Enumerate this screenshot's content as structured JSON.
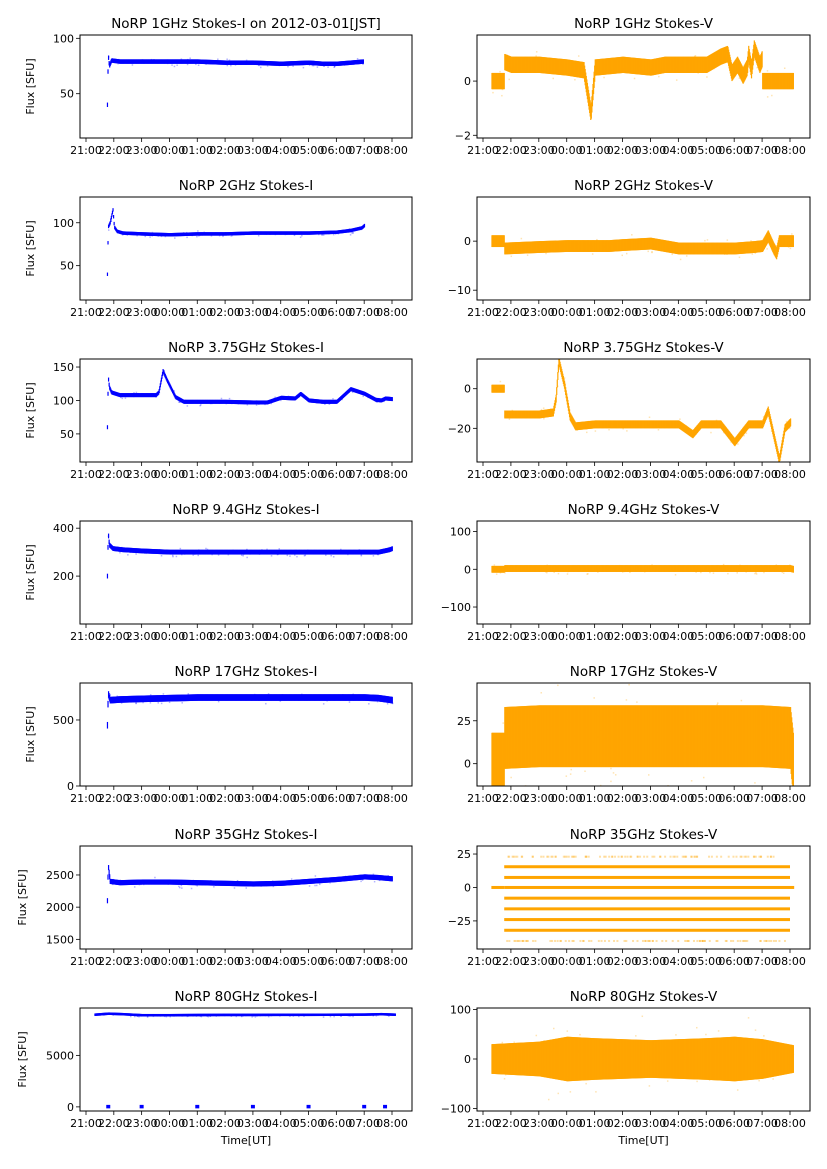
{
  "figure": {
    "xlabel_bottom": "Time[UT]",
    "ylabel_left": "Flux [SFU]",
    "x_ticks": [
      "21:00",
      "22:00",
      "23:00",
      "00:00",
      "01:00",
      "02:00",
      "03:00",
      "04:00",
      "05:00",
      "06:00",
      "07:00",
      "08:00"
    ],
    "colors": {
      "stokes_i": "#0000ff",
      "stokes_v": "#ffa500"
    }
  },
  "chart_data": [
    {
      "type": "scatter",
      "title": "NoRP 1GHz Stokes-I on 2012-03-01[JST]",
      "ylabel": "Flux [SFU]",
      "xlabel": "",
      "x_unit": "hours since 21:00 UT",
      "xlim": [
        -0.2,
        11.2
      ],
      "ylim": [
        10,
        103
      ],
      "yticks": [
        50,
        100
      ],
      "series": [
        {
          "name": "Stokes-I",
          "color": "#0000ff",
          "x": [
            0.75,
            0.78,
            0.82,
            0.9,
            1.2,
            2,
            3,
            4,
            5,
            6,
            7,
            8,
            8.5,
            9,
            9.5,
            9.95
          ],
          "y": [
            40,
            85,
            75,
            80,
            79,
            79,
            79,
            79,
            78,
            78,
            77,
            78,
            77,
            77,
            78,
            79
          ],
          "spread": 2
        }
      ]
    },
    {
      "type": "scatter",
      "title": "NoRP 1GHz Stokes-V",
      "ylabel": "",
      "xlabel": "",
      "x_unit": "hours since 21:00 UT",
      "xlim": [
        -0.2,
        11.2
      ],
      "ylim": [
        -2.1,
        1.7
      ],
      "yticks": [
        -2,
        0
      ],
      "series": [
        {
          "name": "Stokes-V",
          "color": "#ffa500",
          "x": [
            0.3,
            0.74,
            0.76,
            1,
            2,
            3,
            3.6,
            3.85,
            4,
            5,
            6,
            6.5,
            6.9,
            7.2,
            7.5,
            8,
            8.5,
            8.75,
            8.9,
            9.1,
            9.3,
            9.45,
            9.5,
            9.6,
            9.7,
            9.9,
            9.98,
            10,
            10.5,
            11.1
          ],
          "y": [
            0,
            0,
            0.7,
            0.6,
            0.6,
            0.5,
            0.4,
            -1.2,
            0.5,
            0.6,
            0.5,
            0.6,
            0.6,
            0.6,
            0.6,
            0.6,
            0.9,
            1.0,
            0.3,
            0.6,
            0.2,
            0.5,
            1.0,
            0.4,
            1.2,
            0.6,
            0.8,
            0,
            0,
            0
          ],
          "spread": 0.3
        }
      ]
    },
    {
      "type": "scatter",
      "title": "NoRP 2GHz Stokes-I",
      "ylabel": "Flux [SFU]",
      "xlabel": "",
      "x_unit": "hours since 21:00 UT",
      "xlim": [
        -0.2,
        11.2
      ],
      "ylim": [
        10,
        130
      ],
      "yticks": [
        50,
        100
      ],
      "series": [
        {
          "name": "Stokes-I",
          "color": "#0000ff",
          "x": [
            0.75,
            0.78,
            0.85,
            0.95,
            1.0,
            1.1,
            1.3,
            2,
            3,
            4,
            5,
            6,
            7,
            8,
            9,
            9.5,
            9.9,
            10.0
          ],
          "y": [
            40,
            95,
            100,
            115,
            95,
            90,
            88,
            87,
            86,
            87,
            87,
            88,
            88,
            88,
            89,
            91,
            94,
            97
          ],
          "spread": 2
        }
      ]
    },
    {
      "type": "scatter",
      "title": "NoRP 2GHz Stokes-V",
      "ylabel": "",
      "xlabel": "",
      "x_unit": "hours since 21:00 UT",
      "xlim": [
        -0.2,
        11.2
      ],
      "ylim": [
        -12,
        9
      ],
      "yticks": [
        -10,
        0
      ],
      "series": [
        {
          "name": "Stokes-V",
          "color": "#ffa500",
          "x": [
            0.3,
            0.74,
            0.76,
            2,
            3,
            4,
            4.5,
            5,
            6,
            7,
            8,
            9,
            9.7,
            10.0,
            10.2,
            10.4,
            10.5,
            10.6,
            10.8,
            11.1
          ],
          "y": [
            0,
            0,
            -1.5,
            -1.2,
            -1,
            -1,
            -1,
            -0.8,
            -0.5,
            -1.5,
            -1.5,
            -1.5,
            -1.2,
            -1,
            1,
            -1.5,
            -2.5,
            0,
            0,
            0
          ],
          "spread": 1.2
        }
      ]
    },
    {
      "type": "scatter",
      "title": "NoRP 3.75GHz Stokes-I",
      "ylabel": "Flux [SFU]",
      "xlabel": "",
      "x_unit": "hours since 21:00 UT",
      "xlim": [
        -0.2,
        11.2
      ],
      "ylim": [
        8,
        162
      ],
      "yticks": [
        50,
        100,
        150
      ],
      "series": [
        {
          "name": "Stokes-I",
          "color": "#0000ff",
          "x": [
            0.75,
            0.78,
            0.82,
            0.9,
            1.2,
            2,
            2.5,
            2.6,
            2.75,
            2.9,
            3.2,
            3.5,
            4,
            5,
            6,
            6.5,
            7,
            7.5,
            7.7,
            8,
            8.5,
            9,
            9.5,
            10,
            10.4,
            10.6,
            10.75,
            11
          ],
          "y": [
            60,
            135,
            120,
            112,
            108,
            108,
            108,
            112,
            144,
            130,
            105,
            98,
            98,
            98,
            97,
            97,
            104,
            103,
            110,
            100,
            98,
            98,
            117,
            110,
            101,
            100,
            103,
            102
          ],
          "spread": 3
        }
      ]
    },
    {
      "type": "scatter",
      "title": "NoRP 3.75GHz Stokes-V",
      "ylabel": "",
      "xlabel": "",
      "x_unit": "hours since 21:00 UT",
      "xlim": [
        -0.2,
        11.2
      ],
      "ylim": [
        -37,
        15
      ],
      "yticks": [
        -20,
        0
      ],
      "series": [
        {
          "name": "Stokes-V",
          "color": "#ffa500",
          "x": [
            0.3,
            0.74,
            0.76,
            2,
            2.5,
            2.6,
            2.7,
            2.9,
            3.1,
            3.3,
            4,
            5,
            6,
            7,
            7.5,
            7.8,
            8,
            8.5,
            9,
            9.5,
            10,
            10.2,
            10.6,
            10.8,
            11.0
          ],
          "y": [
            0,
            0,
            -13,
            -13,
            -12,
            -5,
            14,
            2,
            -14,
            -19,
            -18,
            -18,
            -18,
            -18,
            -23,
            -18,
            -18,
            -18,
            -27,
            -18,
            -18,
            -11,
            -36,
            -20,
            -17
          ],
          "spread": 2
        }
      ]
    },
    {
      "type": "scatter",
      "title": "NoRP 9.4GHz Stokes-I",
      "ylabel": "Flux [SFU]",
      "xlabel": "",
      "x_unit": "hours since 21:00 UT",
      "xlim": [
        -0.2,
        11.2
      ],
      "ylim": [
        0,
        430
      ],
      "yticks": [
        200,
        400
      ],
      "series": [
        {
          "name": "Stokes-I",
          "color": "#0000ff",
          "x": [
            0.75,
            0.78,
            0.82,
            0.95,
            1.3,
            2,
            3,
            4,
            5,
            6,
            7,
            8,
            9,
            10,
            10.5,
            10.9,
            11
          ],
          "y": [
            200,
            380,
            330,
            315,
            310,
            305,
            300,
            300,
            300,
            300,
            300,
            300,
            300,
            300,
            300,
            310,
            315
          ],
          "spread": 10
        }
      ]
    },
    {
      "type": "scatter",
      "title": "NoRP 9.4GHz Stokes-V",
      "ylabel": "",
      "xlabel": "",
      "x_unit": "hours since 21:00 UT",
      "xlim": [
        -0.2,
        11.2
      ],
      "ylim": [
        -145,
        128
      ],
      "yticks": [
        -100,
        0,
        100
      ],
      "series": [
        {
          "name": "Stokes-V",
          "color": "#ffa500",
          "x": [
            0.3,
            0.74,
            0.76,
            2,
            4,
            6,
            8,
            10,
            11,
            11.1
          ],
          "y": [
            0,
            0,
            2,
            2,
            2,
            2,
            2,
            2,
            2,
            0
          ],
          "spread": 9
        }
      ]
    },
    {
      "type": "scatter",
      "title": "NoRP 17GHz Stokes-I",
      "ylabel": "Flux [SFU]",
      "xlabel": "",
      "x_unit": "hours since 21:00 UT",
      "xlim": [
        -0.2,
        11.2
      ],
      "ylim": [
        0,
        780
      ],
      "yticks": [
        0,
        500
      ],
      "series": [
        {
          "name": "Stokes-I",
          "color": "#0000ff",
          "x": [
            0.75,
            0.78,
            0.85,
            1.2,
            2,
            3,
            4,
            5,
            6,
            7,
            8,
            9,
            10,
            10.5,
            11
          ],
          "y": [
            460,
            700,
            650,
            655,
            660,
            665,
            670,
            670,
            670,
            670,
            670,
            670,
            670,
            665,
            650
          ],
          "spread": 25
        }
      ]
    },
    {
      "type": "scatter",
      "title": "NoRP 17GHz Stokes-V",
      "ylabel": "",
      "xlabel": "",
      "x_unit": "hours since 21:00 UT",
      "xlim": [
        -0.2,
        11.2
      ],
      "ylim": [
        -13,
        47
      ],
      "yticks": [
        0,
        25
      ],
      "series": [
        {
          "name": "Stokes-V",
          "color": "#ffa500",
          "x": [
            0.3,
            0.74,
            0.76,
            2,
            4,
            6,
            8,
            10,
            11,
            11.1
          ],
          "y": [
            0,
            0,
            15,
            16,
            16,
            16,
            16,
            16,
            15,
            0
          ],
          "spread": 18
        }
      ]
    },
    {
      "type": "scatter",
      "title": "NoRP 35GHz Stokes-I",
      "ylabel": "Flux [SFU]",
      "xlabel": "",
      "x_unit": "hours since 21:00 UT",
      "xlim": [
        -0.2,
        11.2
      ],
      "ylim": [
        1350,
        2950
      ],
      "yticks": [
        1500,
        2000,
        2500
      ],
      "series": [
        {
          "name": "Stokes-I",
          "color": "#0000ff",
          "x": [
            0.75,
            0.78,
            0.85,
            1.2,
            2,
            3,
            4,
            5,
            6,
            7,
            8,
            9,
            10,
            10.5,
            11
          ],
          "y": [
            2100,
            2650,
            2400,
            2380,
            2390,
            2390,
            2380,
            2370,
            2360,
            2370,
            2400,
            2430,
            2470,
            2460,
            2440
          ],
          "spread": 40
        }
      ]
    },
    {
      "type": "scatter",
      "title": "NoRP 35GHz Stokes-V",
      "ylabel": "",
      "xlabel": "",
      "x_unit": "hours since 21:00 UT",
      "xlim": [
        -0.2,
        11.2
      ],
      "ylim": [
        -46,
        31
      ],
      "yticks": [
        -25,
        0,
        25
      ],
      "series": [
        {
          "name": "Stokes-V",
          "color": "#ffa500",
          "levels": [
            23,
            15.5,
            7.5,
            0,
            -8,
            -16,
            -24,
            -32,
            -40
          ],
          "x": [
            0.76,
            11.0
          ],
          "y": [
            0,
            0
          ],
          "spread": 0
        }
      ]
    },
    {
      "type": "scatter",
      "title": "NoRP 80GHz Stokes-I",
      "ylabel": "Flux [SFU]",
      "xlabel": "Time[UT]",
      "x_unit": "hours since 21:00 UT",
      "xlim": [
        -0.2,
        11.2
      ],
      "ylim": [
        -400,
        9600
      ],
      "yticks": [
        0,
        5000
      ],
      "series": [
        {
          "name": "Stokes-I",
          "color": "#0000ff",
          "x": [
            0.3,
            0.8,
            1.3,
            2,
            3,
            4,
            5,
            6,
            7,
            8,
            9,
            10,
            10.6,
            11.1
          ],
          "y": [
            8950,
            9050,
            9000,
            8900,
            8900,
            8920,
            8930,
            8930,
            8940,
            8940,
            8950,
            8960,
            9000,
            8950
          ],
          "spread": 80,
          "zero_points_x": [
            0.8,
            2.0,
            4.0,
            6.0,
            8.0,
            10.0,
            10.75
          ]
        }
      ]
    },
    {
      "type": "scatter",
      "title": "NoRP 80GHz Stokes-V",
      "ylabel": "",
      "xlabel": "Time[UT]",
      "x_unit": "hours since 21:00 UT",
      "xlim": [
        -0.2,
        11.2
      ],
      "ylim": [
        -105,
        103
      ],
      "yticks": [
        -100,
        0,
        100
      ],
      "series": [
        {
          "name": "Stokes-V",
          "color": "#ffa500",
          "x": [
            0.3,
            2,
            3,
            4,
            6,
            8,
            9,
            10,
            11.1
          ],
          "y": [
            0,
            0,
            0,
            0,
            0,
            0,
            0,
            0,
            0
          ],
          "spread_profile": [
            30,
            35,
            45,
            42,
            38,
            42,
            45,
            40,
            28
          ],
          "spread": 35
        }
      ]
    }
  ]
}
